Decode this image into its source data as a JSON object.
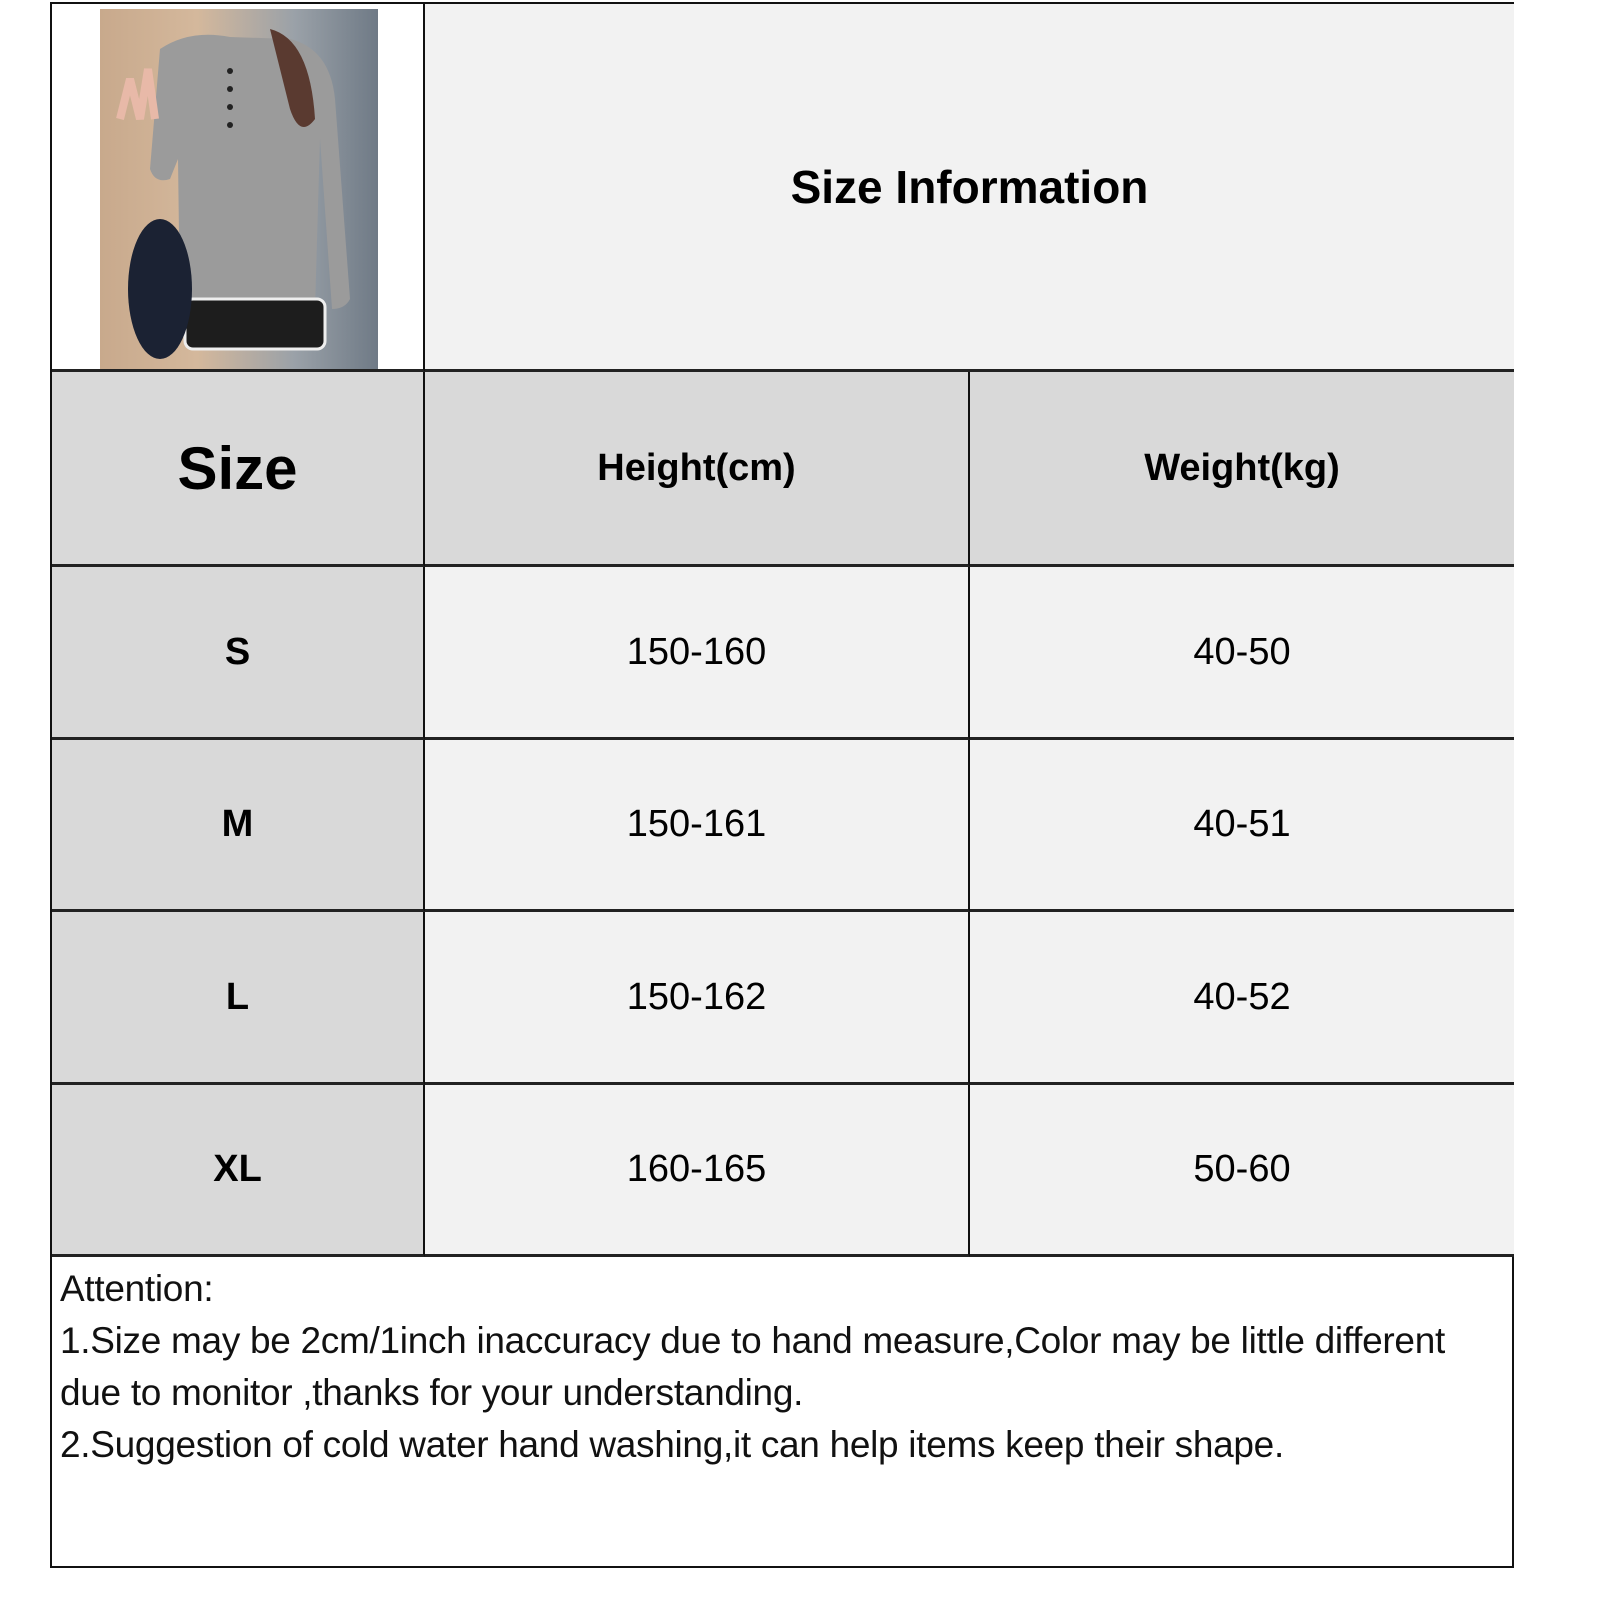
{
  "title": "Size Information",
  "headers": [
    "Size",
    "Height(cm)",
    "Weight(kg)"
  ],
  "rows": [
    {
      "size": "S",
      "height": "150-160",
      "weight": "40-50"
    },
    {
      "size": "M",
      "height": "150-161",
      "weight": "40-51"
    },
    {
      "size": "L",
      "height": "150-162",
      "weight": "40-52"
    },
    {
      "size": "XL",
      "height": "160-165",
      "weight": "50-60"
    }
  ],
  "notes": {
    "heading": "Attention:",
    "line1": "1.Size may be 2cm/1inch inaccuracy due to hand measure,Color may be little different due to monitor ,thanks for your understanding.",
    "line2": "2.Suggestion of cold water hand washing,it can help items keep their shape."
  },
  "colors": {
    "header_bg": "#d9d9d9",
    "cell_bg": "#f2f2f2",
    "border": "#111111"
  }
}
